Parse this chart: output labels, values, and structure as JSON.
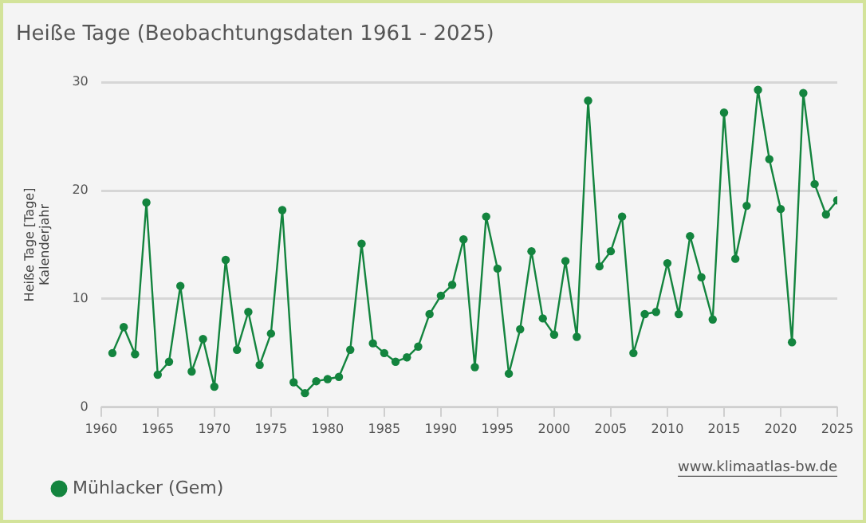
{
  "chart_data": {
    "type": "line",
    "title": "Heiße Tage (Beobachtungsdaten 1961 - 2025)",
    "ylabel": "Heiße Tage [Tage]\nKalenderjahr",
    "x": [
      1961,
      1962,
      1963,
      1964,
      1965,
      1966,
      1967,
      1968,
      1969,
      1970,
      1971,
      1972,
      1973,
      1974,
      1975,
      1976,
      1977,
      1978,
      1979,
      1980,
      1981,
      1982,
      1983,
      1984,
      1985,
      1986,
      1987,
      1988,
      1989,
      1990,
      1991,
      1992,
      1993,
      1994,
      1995,
      1996,
      1997,
      1998,
      1999,
      2000,
      2001,
      2002,
      2003,
      2004,
      2005,
      2006,
      2007,
      2008,
      2009,
      2010,
      2011,
      2012,
      2013,
      2014,
      2015,
      2016,
      2017,
      2018,
      2019,
      2020,
      2021,
      2022,
      2023,
      2024,
      2025
    ],
    "series": [
      {
        "name": "Mühlacker (Gem)",
        "color": "#13843e",
        "values": [
          5,
          7.4,
          4.9,
          18.9,
          3,
          4.2,
          11.2,
          3.3,
          6.3,
          1.9,
          13.6,
          5.3,
          8.8,
          3.9,
          6.8,
          18.2,
          2.3,
          1.3,
          2.4,
          2.6,
          2.8,
          5.3,
          15.1,
          5.9,
          5,
          4.2,
          4.6,
          5.6,
          8.6,
          10.3,
          11.3,
          15.5,
          3.7,
          17.6,
          12.8,
          3.1,
          7.2,
          14.4,
          8.2,
          6.7,
          13.5,
          6.5,
          28.3,
          13,
          14.4,
          17.6,
          5,
          8.6,
          8.8,
          13.3,
          8.6,
          15.8,
          12,
          8.1,
          27.2,
          13.7,
          18.6,
          29.3,
          22.9,
          18.3,
          6,
          29,
          20.6,
          17.8,
          19.1
        ]
      }
    ],
    "xlim": [
      1960,
      2025
    ],
    "xticks": [
      1960,
      1965,
      1970,
      1975,
      1980,
      1985,
      1990,
      1995,
      2000,
      2005,
      2010,
      2015,
      2020,
      2025
    ],
    "ylim": [
      0,
      30
    ],
    "yticks": [
      0,
      10,
      20,
      30
    ],
    "grid": "y",
    "legend": "bottom left",
    "marker": "circle",
    "line_style": "solid",
    "annotations": [
      "www.klimaatlas-bw.de"
    ]
  }
}
